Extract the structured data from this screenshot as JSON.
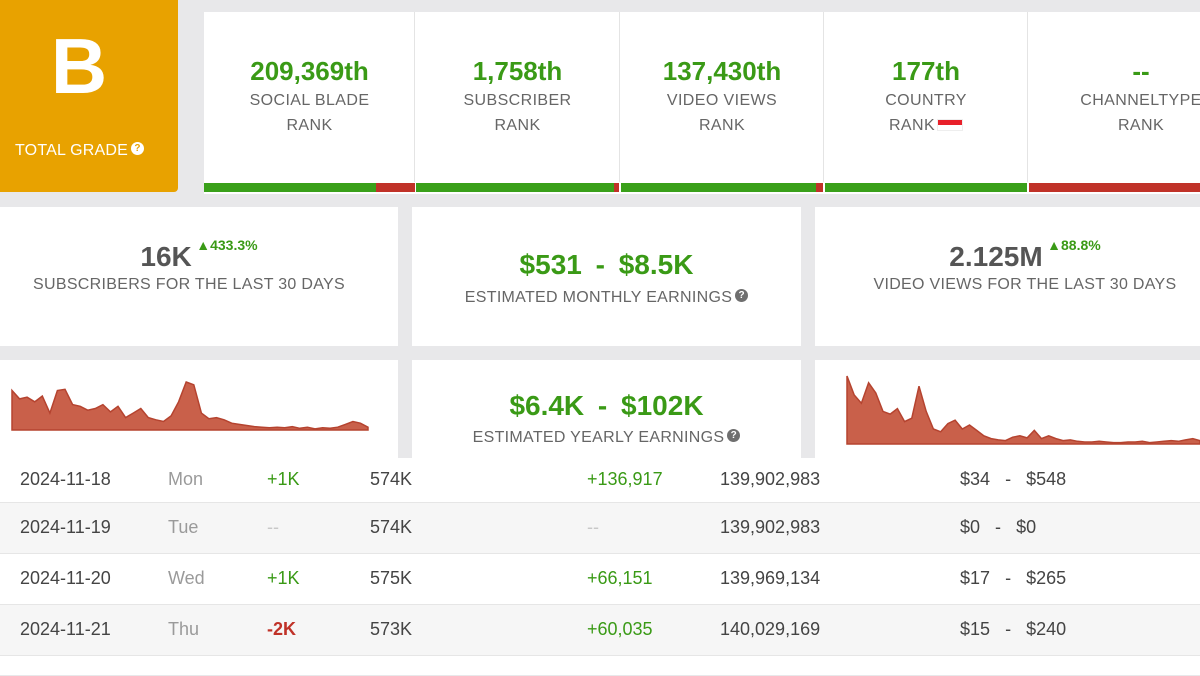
{
  "grade": {
    "letter": "B",
    "label": "TOTAL GRADE",
    "color": "#e8a200"
  },
  "ranks": [
    {
      "value": "209,369th",
      "line1": "SOCIAL BLADE",
      "line2": "RANK",
      "bar_fill": 0.81
    },
    {
      "value": "1,758th",
      "line1": "SUBSCRIBER",
      "line2": "RANK",
      "bar_fill": 0.98
    },
    {
      "value": "137,430th",
      "line1": "VIDEO VIEWS",
      "line2": "RANK",
      "bar_fill": 0.96
    },
    {
      "value": "177th",
      "line1": "COUNTRY",
      "line2": "RANK",
      "bar_fill": 1.0
    },
    {
      "value": "--",
      "line1": "CHANNELTYPE",
      "line2": "RANK",
      "bar_fill": 0
    }
  ],
  "stats": {
    "subscribers": {
      "value": "16K",
      "delta": "433.3%",
      "caption": "SUBSCRIBERS FOR THE LAST 30 DAYS"
    },
    "monthly": {
      "value": "$531  -  $8.5K",
      "caption": "ESTIMATED MONTHLY EARNINGS"
    },
    "yearly": {
      "value": "$6.4K  -  $102K",
      "caption": "ESTIMATED YEARLY EARNINGS"
    },
    "views": {
      "value": "2.125M",
      "delta": "88.8%",
      "caption": "VIDEO VIEWS FOR THE LAST 30 DAYS"
    }
  },
  "sparklines": {
    "subscribers": [
      70,
      55,
      58,
      50,
      60,
      30,
      70,
      72,
      45,
      42,
      35,
      38,
      45,
      32,
      42,
      22,
      30,
      38,
      22,
      18,
      15,
      25,
      50,
      85,
      80,
      30,
      20,
      22,
      18,
      12,
      10,
      8,
      6,
      5,
      4,
      5,
      4,
      6,
      3,
      5,
      2,
      4,
      3,
      5,
      10,
      15,
      12,
      5
    ],
    "views": [
      100,
      72,
      60,
      90,
      75,
      48,
      44,
      52,
      33,
      38,
      85,
      48,
      22,
      18,
      30,
      35,
      22,
      28,
      20,
      12,
      8,
      6,
      5,
      10,
      12,
      9,
      20,
      8,
      12,
      8,
      5,
      6,
      4,
      3,
      3,
      4,
      3,
      2,
      2,
      3,
      3,
      4,
      2,
      3,
      4,
      5,
      4,
      6,
      8,
      5
    ]
  },
  "colors": {
    "positive": "#3a9a16",
    "negative": "#c03228",
    "chart_fill": "#c9604a"
  },
  "table": [
    {
      "date": "2024-11-18",
      "day": "Mon",
      "subs_delta": "+1K",
      "subs": "574K",
      "views_delta": "+136,917",
      "views": "139,902,983",
      "earn_low": "$34",
      "earn_high": "$548"
    },
    {
      "date": "2024-11-19",
      "day": "Tue",
      "subs_delta": "--",
      "subs": "574K",
      "views_delta": "--",
      "views": "139,902,983",
      "earn_low": "$0",
      "earn_high": "$0"
    },
    {
      "date": "2024-11-20",
      "day": "Wed",
      "subs_delta": "+1K",
      "subs": "575K",
      "views_delta": "+66,151",
      "views": "139,969,134",
      "earn_low": "$17",
      "earn_high": "$265"
    },
    {
      "date": "2024-11-21",
      "day": "Thu",
      "subs_delta": "-2K",
      "subs": "573K",
      "views_delta": "+60,035",
      "views": "140,029,169",
      "earn_low": "$15",
      "earn_high": "$240"
    }
  ],
  "earnings_separator": "-"
}
